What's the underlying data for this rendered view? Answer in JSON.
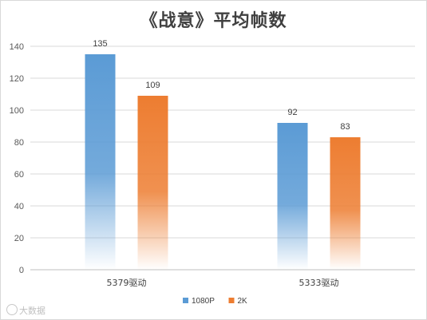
{
  "chart_data": {
    "type": "bar",
    "title": "《战意》平均帧数",
    "categories": [
      "5379驱动",
      "5333驱动"
    ],
    "series": [
      {
        "name": "1080P",
        "values": [
          135,
          92
        ],
        "color": "#5b9bd5"
      },
      {
        "name": "2K",
        "values": [
          109,
          83
        ],
        "color": "#ed7d31"
      }
    ],
    "ylim": [
      0,
      140
    ],
    "yticks": [
      0,
      20,
      40,
      60,
      80,
      100,
      120,
      140
    ],
    "grid": true,
    "legend": "bottom",
    "data_labels": true
  },
  "watermark": "大数据"
}
